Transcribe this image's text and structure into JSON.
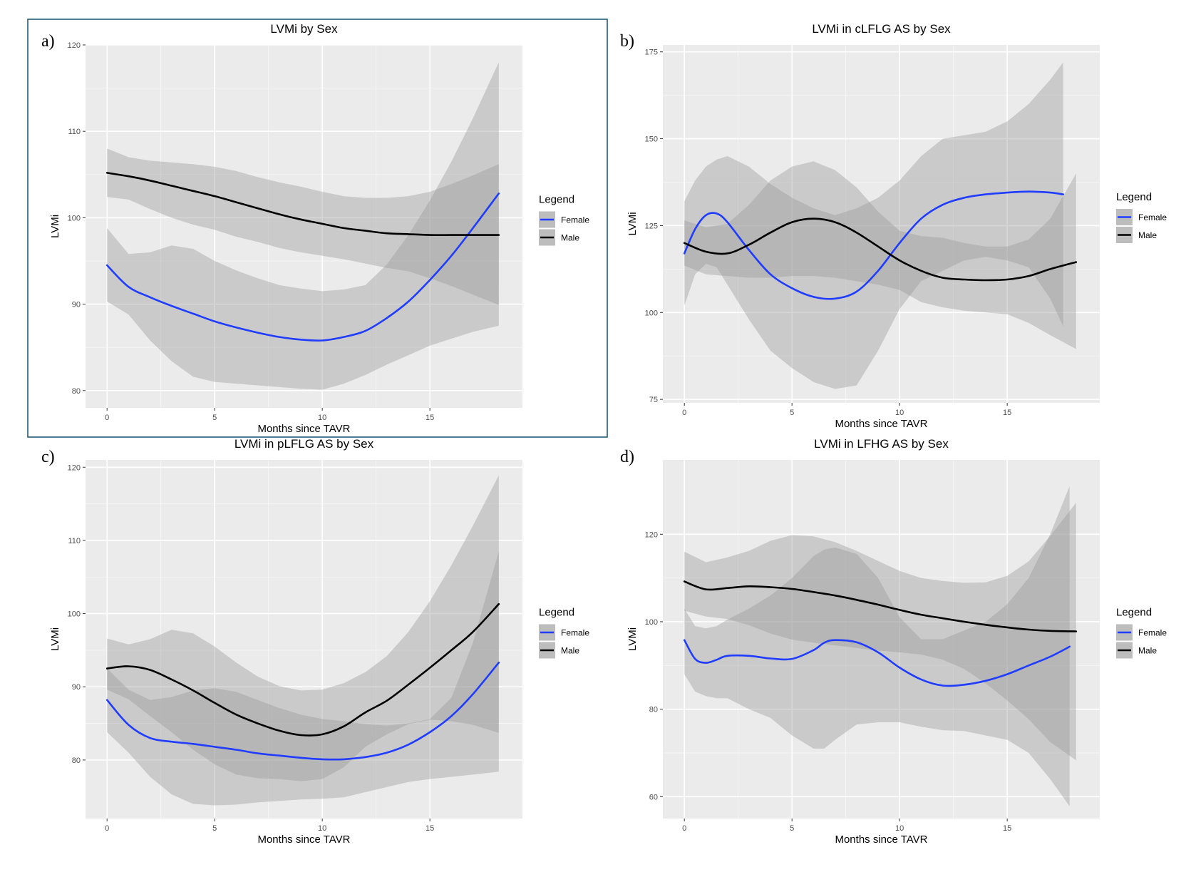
{
  "chart_data": [
    {
      "type": "line",
      "panel": "a)",
      "title": "LVMi by Sex",
      "xlabel": "Months since TAVR",
      "ylabel": "LVMi",
      "xlim": [
        -1,
        19.3
      ],
      "ylim": [
        78,
        120
      ],
      "xticks": [
        0,
        5,
        10,
        15
      ],
      "yticks": [
        80,
        90,
        100,
        110,
        120
      ],
      "grid": true,
      "highlighted": true,
      "legend": {
        "title": "Legend",
        "position": "right"
      },
      "series": [
        {
          "name": "Female",
          "color": "#1f3cff",
          "x": [
            0,
            1,
            2,
            3,
            4,
            5,
            6,
            7,
            8,
            9,
            10,
            11,
            12,
            13,
            14,
            15,
            16,
            17,
            18.2
          ],
          "y": [
            94.5,
            92.0,
            90.8,
            89.8,
            88.9,
            88.0,
            87.3,
            86.7,
            86.2,
            85.9,
            85.8,
            86.2,
            86.9,
            88.4,
            90.3,
            92.8,
            95.6,
            98.8,
            102.8
          ],
          "band_upper": [
            98.8,
            95.8,
            96.0,
            96.8,
            96.4,
            95.0,
            93.9,
            93.0,
            92.2,
            91.8,
            91.5,
            91.7,
            92.2,
            94.6,
            98.0,
            102.0,
            106.5,
            111.5,
            118.0
          ],
          "band_lower": [
            90.3,
            88.8,
            85.8,
            83.4,
            81.6,
            81.0,
            80.8,
            80.6,
            80.4,
            80.2,
            80.1,
            80.8,
            81.8,
            83.0,
            84.1,
            85.2,
            86.0,
            86.8,
            87.5
          ]
        },
        {
          "name": "Male",
          "color": "#000000",
          "x": [
            0,
            1,
            2,
            3,
            4,
            5,
            6,
            7,
            8,
            9,
            10,
            11,
            12,
            13,
            14,
            15,
            16,
            17,
            18.2
          ],
          "y": [
            105.2,
            104.8,
            104.3,
            103.7,
            103.1,
            102.5,
            101.8,
            101.1,
            100.4,
            99.8,
            99.3,
            98.8,
            98.5,
            98.2,
            98.1,
            98.0,
            98.0,
            98.0,
            98.0
          ],
          "band_upper": [
            108.0,
            107.0,
            106.6,
            106.4,
            106.2,
            105.9,
            105.4,
            104.7,
            104.1,
            103.6,
            103.0,
            102.5,
            102.3,
            102.3,
            102.5,
            103.0,
            103.9,
            104.9,
            106.2
          ],
          "band_lower": [
            102.4,
            102.1,
            101.0,
            100.0,
            99.2,
            98.6,
            97.8,
            97.2,
            96.5,
            96.0,
            95.6,
            95.2,
            94.7,
            94.2,
            93.8,
            93.0,
            92.1,
            91.1,
            89.9
          ]
        }
      ]
    },
    {
      "type": "line",
      "panel": "b)",
      "title": "LVMi in cLFLG AS by Sex",
      "xlabel": "Months since TAVR",
      "ylabel": "LVMi",
      "xlim": [
        -1,
        19.3
      ],
      "ylim": [
        74,
        177
      ],
      "xticks": [
        0,
        5,
        10,
        15
      ],
      "yticks": [
        75,
        100,
        125,
        150,
        175
      ],
      "grid": true,
      "legend": {
        "title": "Legend",
        "position": "right"
      },
      "series": [
        {
          "name": "Female",
          "color": "#1f3cff",
          "x": [
            0,
            0.5,
            1,
            1.5,
            2,
            3,
            4,
            5,
            6,
            7,
            8,
            9,
            10,
            11,
            12,
            13,
            14,
            15,
            16,
            17,
            17.6
          ],
          "y": [
            117,
            124,
            128,
            128.5,
            126,
            118,
            111,
            107,
            104.5,
            104,
            106,
            112,
            120,
            127,
            131,
            133,
            134,
            134.5,
            134.8,
            134.5,
            134
          ],
          "band_upper": [
            132,
            138,
            142,
            144,
            145,
            142,
            137,
            133,
            130,
            128,
            130,
            133,
            138,
            145,
            150,
            151,
            152,
            155,
            160,
            167,
            172
          ],
          "band_lower": [
            102,
            111,
            114,
            113,
            108,
            98,
            89,
            84,
            80,
            78,
            79,
            89,
            101,
            109,
            112,
            115,
            116,
            115,
            113,
            104,
            96
          ]
        },
        {
          "name": "Male",
          "color": "#000000",
          "x": [
            0,
            1,
            2,
            3,
            4,
            5,
            6,
            7,
            8,
            9,
            10,
            11,
            12,
            13,
            14,
            15,
            16,
            17,
            18.2
          ],
          "y": [
            120,
            117.5,
            117,
            119.5,
            123,
            126,
            127,
            126,
            123,
            119,
            115,
            112,
            110,
            109.5,
            109.3,
            109.5,
            110.5,
            112.5,
            114.5
          ],
          "band_upper": [
            126.5,
            124.5,
            125.5,
            131,
            138,
            142,
            143.5,
            141,
            136,
            129,
            123.5,
            122,
            121.5,
            120,
            119,
            119,
            121,
            127,
            140
          ],
          "band_lower": [
            113.5,
            111,
            110.5,
            110,
            110,
            110.5,
            110.5,
            110,
            109,
            108,
            106.5,
            103,
            101.5,
            100.5,
            100,
            99.5,
            97,
            93.5,
            89.5
          ]
        }
      ]
    },
    {
      "type": "line",
      "panel": "c)",
      "title": "LVMi in pLFLG AS by Sex",
      "xlabel": "Months since TAVR",
      "ylabel": "LVMi",
      "xlim": [
        -1,
        19.3
      ],
      "ylim": [
        72,
        121
      ],
      "xticks": [
        0,
        5,
        10,
        15
      ],
      "yticks": [
        80,
        90,
        100,
        110,
        120
      ],
      "grid": true,
      "legend": {
        "title": "Legend",
        "position": "right"
      },
      "series": [
        {
          "name": "Female",
          "color": "#1f3cff",
          "x": [
            0,
            1,
            2,
            3,
            4,
            5,
            6,
            7,
            8,
            9,
            10,
            11,
            12,
            13,
            14,
            15,
            16,
            17,
            18.2
          ],
          "y": [
            88.2,
            84.8,
            83.0,
            82.5,
            82.2,
            81.8,
            81.4,
            80.9,
            80.6,
            80.3,
            80.1,
            80.1,
            80.4,
            81.0,
            82.1,
            83.8,
            86.0,
            89.0,
            93.3
          ],
          "band_upper": [
            92.5,
            89.6,
            88.2,
            88.6,
            89.5,
            89.8,
            89.3,
            88.2,
            87.1,
            86.2,
            85.6,
            85.3,
            84.9,
            84.7,
            85.0,
            85.6,
            88.5,
            96.0,
            108.5
          ],
          "band_lower": [
            83.8,
            81.0,
            77.7,
            75.3,
            74.0,
            73.8,
            73.9,
            74.2,
            74.4,
            74.6,
            74.7,
            74.9,
            75.6,
            76.3,
            77.0,
            77.4,
            77.7,
            78.0,
            78.4
          ]
        },
        {
          "name": "Male",
          "color": "#000000",
          "x": [
            0,
            1,
            2,
            3,
            4,
            5,
            6,
            7,
            8,
            9,
            10,
            11,
            12,
            13,
            14,
            15,
            16,
            17,
            18.2
          ],
          "y": [
            92.5,
            92.8,
            92.3,
            91.0,
            89.5,
            87.8,
            86.2,
            85.0,
            84.0,
            83.4,
            83.5,
            84.6,
            86.5,
            88.1,
            90.3,
            92.6,
            95.0,
            97.5,
            101.3
          ],
          "band_upper": [
            96.6,
            95.8,
            96.5,
            97.8,
            97.3,
            95.5,
            93.3,
            91.4,
            90.1,
            89.5,
            89.6,
            90.5,
            92.0,
            94.2,
            97.5,
            101.7,
            106.6,
            112.0,
            118.9
          ],
          "band_lower": [
            89.6,
            88.3,
            86.0,
            83.8,
            81.4,
            79.4,
            78.0,
            77.5,
            77.4,
            77.1,
            77.4,
            79.0,
            81.8,
            83.5,
            84.9,
            85.5,
            85.3,
            84.8,
            83.7
          ]
        }
      ]
    },
    {
      "type": "line",
      "panel": "d)",
      "title": "LVMi in LFHG AS by Sex",
      "xlabel": "Months since TAVR",
      "ylabel": "LVMi",
      "xlim": [
        -1,
        19.3
      ],
      "ylim": [
        55,
        137
      ],
      "xticks": [
        0,
        5,
        10,
        15
      ],
      "yticks": [
        60,
        80,
        100,
        120
      ],
      "grid": true,
      "legend": {
        "title": "Legend",
        "position": "right"
      },
      "series": [
        {
          "name": "Female",
          "color": "#1f3cff",
          "x": [
            0,
            0.5,
            1,
            1.5,
            2,
            3,
            4,
            5,
            6,
            6.5,
            7,
            8,
            9,
            10,
            11,
            12,
            13,
            14,
            15,
            16,
            17,
            17.9
          ],
          "y": [
            95.8,
            91.5,
            90.6,
            91.3,
            92.2,
            92.2,
            91.6,
            91.5,
            93.5,
            95.2,
            95.8,
            95.3,
            93.0,
            89.5,
            86.8,
            85.4,
            85.6,
            86.5,
            88.0,
            90.0,
            92.0,
            94.3
          ],
          "band_upper": [
            103,
            99,
            98.5,
            99,
            100.5,
            103,
            106,
            110,
            115,
            116.5,
            117,
            115.5,
            110,
            101,
            96,
            96,
            98,
            100,
            104,
            110,
            120,
            131
          ],
          "band_lower": [
            88,
            84,
            83,
            82.5,
            82.5,
            80,
            78,
            74,
            71,
            71,
            73,
            76.5,
            77,
            77,
            76,
            75.2,
            75,
            74,
            73,
            70,
            64,
            57.8
          ]
        },
        {
          "name": "Male",
          "color": "#000000",
          "x": [
            0,
            1,
            2,
            3,
            4,
            5,
            6,
            7,
            8,
            9,
            10,
            11,
            12,
            13,
            14,
            15,
            16,
            17,
            18.2
          ],
          "y": [
            109.2,
            107.4,
            107.7,
            108.1,
            107.9,
            107.5,
            106.8,
            106.0,
            105.0,
            103.9,
            102.7,
            101.6,
            100.8,
            100.0,
            99.3,
            98.7,
            98.2,
            97.9,
            97.8
          ],
          "band_upper": [
            116,
            113.6,
            114.7,
            116.2,
            118.5,
            119.8,
            119.5,
            118.2,
            116.2,
            113.9,
            111.6,
            110.0,
            109.3,
            108.9,
            109.0,
            110.5,
            113.8,
            119.6,
            127.2
          ],
          "band_lower": [
            102.5,
            101.2,
            100.6,
            99.2,
            97.3,
            95.9,
            95.2,
            94.6,
            94.0,
            93.4,
            93.0,
            92.5,
            91.3,
            89.2,
            85.9,
            82.0,
            77.7,
            72.5,
            68.3
          ]
        }
      ]
    }
  ]
}
